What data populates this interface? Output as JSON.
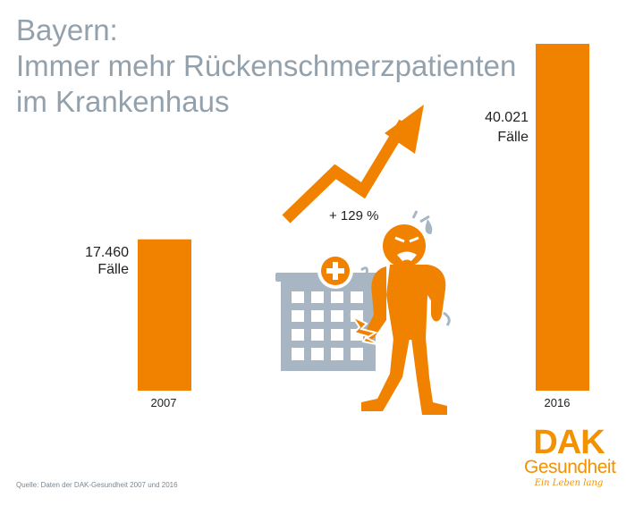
{
  "chart_data": {
    "type": "bar",
    "title": [
      "Bayern:",
      "Immer mehr Rückenschmerzpatienten",
      "im Krankenhaus"
    ],
    "categories": [
      "2007",
      "2016"
    ],
    "values": [
      17460,
      40021
    ],
    "data_labels": [
      {
        "value": "17.460",
        "unit": "Fälle"
      },
      {
        "value": "40.021",
        "unit": "Fälle"
      }
    ],
    "annotation": "+  129 %",
    "bar_color": "#f08200",
    "ylim": [
      0,
      40021
    ]
  },
  "source": "Quelle: Daten der DAK-Gesundheit 2007 und 2016",
  "logo": {
    "brand": "DAK",
    "name": "Gesundheit",
    "slogan": "Ein Leben lang",
    "color": "#f39200"
  },
  "illustration": {
    "icons": [
      "hospital-building-icon",
      "back-pain-person-icon",
      "trend-arrow-icon"
    ],
    "person_color": "#f08200",
    "building_color": "#a8b6c3"
  }
}
